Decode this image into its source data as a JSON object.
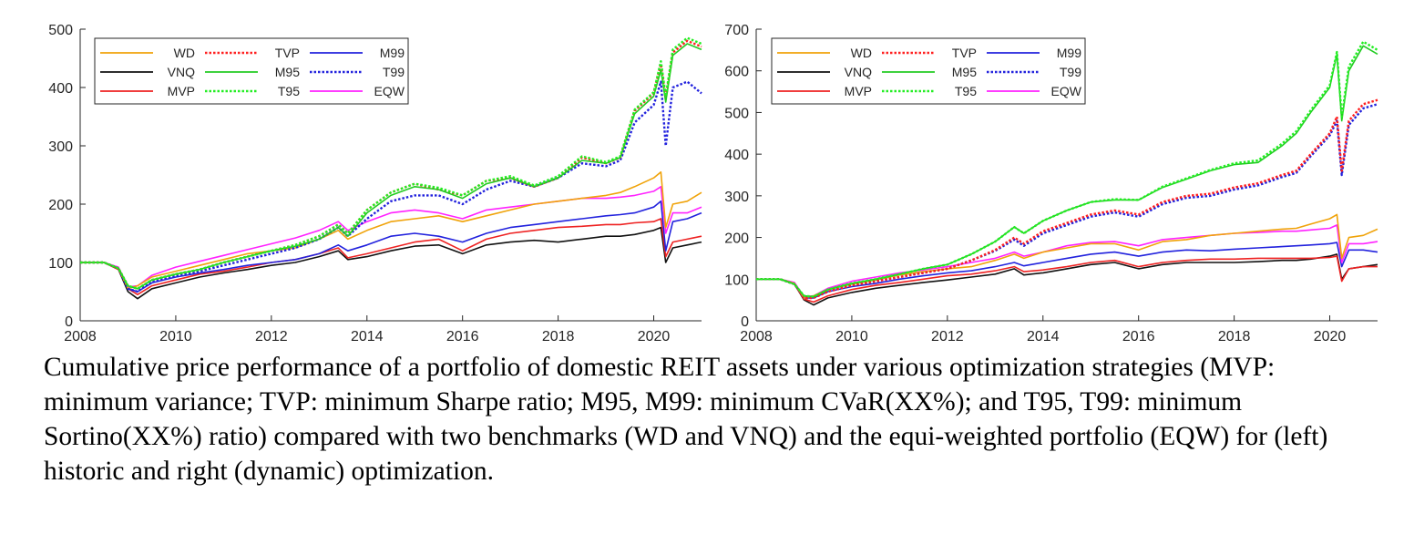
{
  "caption": "Cumulative price performance of a portfolio of domestic REIT assets under various optimization strategies (MVP: minimum variance; TVP: minimum Sharpe ratio; M95, M99: minimum CVaR(XX%); and T95, T99: minimum Sortino(XX%) ratio) compared with two benchmarks (WD and VNQ) and the equi-weighted portfolio (EQW) for (left) historic and right (dynamic) optimization.",
  "legend_style": [
    {
      "name": "WD",
      "color": "#f0a30a",
      "dash": "solid"
    },
    {
      "name": "TVP",
      "color": "#ff1f1f",
      "dash": "dotted"
    },
    {
      "name": "M99",
      "color": "#2222dd",
      "dash": "solid"
    },
    {
      "name": "VNQ",
      "color": "#111111",
      "dash": "solid"
    },
    {
      "name": "M95",
      "color": "#22cc22",
      "dash": "solid"
    },
    {
      "name": "T99",
      "color": "#2222dd",
      "dash": "dotted"
    },
    {
      "name": "MVP",
      "color": "#ee2222",
      "dash": "solid"
    },
    {
      "name": "T95",
      "color": "#22ee22",
      "dash": "dotted"
    },
    {
      "name": "EQW",
      "color": "#ff22ff",
      "dash": "solid"
    }
  ],
  "chart_data": [
    {
      "type": "line",
      "title": "",
      "xlabel": "",
      "ylabel": "",
      "xlim": [
        2008,
        2021
      ],
      "ylim": [
        0,
        500
      ],
      "xticks": [
        2008,
        2010,
        2012,
        2014,
        2016,
        2018,
        2020
      ],
      "yticks": [
        0,
        100,
        200,
        300,
        400,
        500
      ],
      "grid": false,
      "legend_position": "top-left",
      "x": [
        2008.0,
        2008.5,
        2008.8,
        2009.0,
        2009.2,
        2009.5,
        2010.0,
        2010.5,
        2011.0,
        2011.5,
        2012.0,
        2012.5,
        2013.0,
        2013.4,
        2013.6,
        2014.0,
        2014.5,
        2015.0,
        2015.5,
        2016.0,
        2016.5,
        2017.0,
        2017.5,
        2018.0,
        2018.5,
        2019.0,
        2019.3,
        2019.6,
        2020.0,
        2020.15,
        2020.25,
        2020.4,
        2020.7,
        2021.0
      ],
      "series": [
        {
          "name": "WD",
          "values": [
            100,
            100,
            90,
            55,
            60,
            75,
            85,
            95,
            105,
            115,
            120,
            125,
            140,
            155,
            140,
            155,
            170,
            175,
            180,
            170,
            180,
            190,
            200,
            205,
            210,
            215,
            220,
            230,
            245,
            255,
            160,
            200,
            205,
            220
          ]
        },
        {
          "name": "TVP",
          "values": [
            100,
            100,
            90,
            60,
            55,
            70,
            80,
            88,
            100,
            110,
            120,
            130,
            145,
            165,
            150,
            190,
            220,
            235,
            225,
            215,
            240,
            245,
            230,
            245,
            280,
            270,
            280,
            360,
            390,
            440,
            380,
            460,
            480,
            470
          ]
        },
        {
          "name": "M99",
          "values": [
            100,
            100,
            90,
            55,
            50,
            65,
            75,
            82,
            88,
            95,
            100,
            105,
            115,
            130,
            120,
            130,
            145,
            150,
            145,
            135,
            150,
            160,
            165,
            170,
            175,
            180,
            182,
            185,
            195,
            205,
            120,
            170,
            175,
            185
          ]
        },
        {
          "name": "VNQ",
          "values": [
            100,
            100,
            88,
            50,
            38,
            55,
            65,
            75,
            82,
            88,
            95,
            100,
            110,
            120,
            105,
            110,
            120,
            128,
            130,
            115,
            130,
            135,
            138,
            135,
            140,
            145,
            145,
            148,
            155,
            160,
            100,
            125,
            130,
            135
          ]
        },
        {
          "name": "M95",
          "values": [
            100,
            100,
            90,
            60,
            55,
            70,
            80,
            88,
            100,
            110,
            120,
            128,
            140,
            160,
            145,
            185,
            215,
            230,
            225,
            210,
            235,
            245,
            230,
            245,
            275,
            270,
            280,
            355,
            385,
            430,
            375,
            455,
            475,
            465
          ]
        },
        {
          "name": "T99",
          "values": [
            100,
            100,
            90,
            55,
            50,
            68,
            78,
            85,
            95,
            105,
            115,
            125,
            140,
            160,
            145,
            175,
            205,
            215,
            215,
            200,
            225,
            240,
            230,
            245,
            270,
            265,
            275,
            340,
            370,
            410,
            300,
            400,
            410,
            390
          ]
        },
        {
          "name": "MVP",
          "values": [
            100,
            100,
            88,
            55,
            45,
            60,
            70,
            80,
            85,
            92,
            100,
            105,
            115,
            125,
            108,
            115,
            125,
            135,
            140,
            120,
            140,
            150,
            155,
            160,
            162,
            165,
            165,
            168,
            170,
            175,
            110,
            135,
            140,
            145
          ]
        },
        {
          "name": "T95",
          "values": [
            100,
            100,
            90,
            60,
            55,
            70,
            80,
            88,
            100,
            110,
            120,
            130,
            145,
            165,
            150,
            190,
            220,
            235,
            228,
            215,
            240,
            248,
            232,
            248,
            282,
            272,
            282,
            362,
            392,
            445,
            385,
            465,
            485,
            475
          ]
        },
        {
          "name": "EQW",
          "values": [
            100,
            100,
            92,
            58,
            60,
            78,
            92,
            102,
            112,
            122,
            132,
            142,
            155,
            170,
            155,
            170,
            185,
            190,
            185,
            175,
            190,
            195,
            200,
            205,
            210,
            210,
            212,
            215,
            222,
            230,
            150,
            185,
            185,
            195
          ]
        }
      ]
    },
    {
      "type": "line",
      "title": "",
      "xlabel": "",
      "ylabel": "",
      "xlim": [
        2008,
        2021
      ],
      "ylim": [
        0,
        700
      ],
      "xticks": [
        2008,
        2010,
        2012,
        2014,
        2016,
        2018,
        2020
      ],
      "yticks": [
        0,
        100,
        200,
        300,
        400,
        500,
        600,
        700
      ],
      "grid": false,
      "legend_position": "top-left",
      "x": [
        2008.0,
        2008.5,
        2008.8,
        2009.0,
        2009.2,
        2009.5,
        2010.0,
        2010.5,
        2011.0,
        2011.5,
        2012.0,
        2012.5,
        2013.0,
        2013.4,
        2013.6,
        2014.0,
        2014.5,
        2015.0,
        2015.5,
        2016.0,
        2016.5,
        2017.0,
        2017.5,
        2018.0,
        2018.5,
        2019.0,
        2019.3,
        2019.6,
        2020.0,
        2020.15,
        2020.25,
        2020.4,
        2020.7,
        2021.0
      ],
      "series": [
        {
          "name": "WD",
          "values": [
            100,
            100,
            90,
            55,
            60,
            75,
            88,
            98,
            110,
            118,
            125,
            130,
            145,
            160,
            150,
            165,
            175,
            185,
            185,
            170,
            190,
            195,
            205,
            210,
            215,
            220,
            222,
            232,
            245,
            255,
            150,
            200,
            205,
            220
          ]
        },
        {
          "name": "TVP",
          "values": [
            100,
            100,
            88,
            55,
            55,
            70,
            85,
            95,
            105,
            115,
            125,
            145,
            170,
            200,
            185,
            215,
            235,
            255,
            265,
            255,
            285,
            300,
            305,
            320,
            330,
            350,
            360,
            400,
            450,
            490,
            360,
            480,
            520,
            530
          ]
        },
        {
          "name": "M99",
          "values": [
            100,
            100,
            88,
            55,
            55,
            70,
            82,
            90,
            100,
            108,
            115,
            120,
            130,
            140,
            132,
            140,
            150,
            160,
            165,
            155,
            165,
            170,
            168,
            172,
            175,
            178,
            180,
            182,
            185,
            188,
            130,
            170,
            170,
            165
          ]
        },
        {
          "name": "VNQ",
          "values": [
            100,
            100,
            88,
            50,
            38,
            55,
            68,
            78,
            85,
            92,
            98,
            105,
            112,
            125,
            110,
            115,
            125,
            135,
            140,
            125,
            135,
            140,
            140,
            140,
            142,
            145,
            145,
            148,
            155,
            160,
            100,
            125,
            130,
            135
          ]
        },
        {
          "name": "M95",
          "values": [
            100,
            100,
            88,
            60,
            58,
            75,
            90,
            100,
            112,
            125,
            135,
            160,
            190,
            225,
            210,
            240,
            265,
            285,
            290,
            290,
            320,
            340,
            360,
            375,
            380,
            420,
            450,
            500,
            560,
            640,
            480,
            600,
            660,
            640
          ]
        },
        {
          "name": "T99",
          "values": [
            100,
            100,
            88,
            55,
            55,
            70,
            85,
            95,
            105,
            115,
            125,
            145,
            168,
            195,
            180,
            210,
            230,
            250,
            260,
            250,
            280,
            295,
            300,
            315,
            325,
            345,
            355,
            395,
            445,
            480,
            350,
            470,
            510,
            520
          ]
        },
        {
          "name": "MVP",
          "values": [
            100,
            100,
            88,
            52,
            45,
            60,
            75,
            85,
            92,
            100,
            108,
            112,
            120,
            130,
            118,
            122,
            130,
            140,
            145,
            130,
            140,
            145,
            148,
            148,
            150,
            150,
            150,
            150,
            152,
            155,
            95,
            125,
            130,
            130
          ]
        },
        {
          "name": "T95",
          "values": [
            100,
            100,
            88,
            60,
            58,
            75,
            90,
            100,
            112,
            125,
            135,
            160,
            190,
            225,
            210,
            240,
            265,
            285,
            292,
            290,
            322,
            342,
            362,
            378,
            385,
            425,
            455,
            505,
            565,
            645,
            490,
            610,
            670,
            650
          ]
        },
        {
          "name": "EQW",
          "values": [
            100,
            100,
            92,
            58,
            60,
            78,
            95,
            105,
            115,
            122,
            130,
            140,
            150,
            165,
            155,
            165,
            180,
            188,
            190,
            180,
            195,
            200,
            205,
            210,
            212,
            215,
            215,
            218,
            222,
            230,
            140,
            185,
            185,
            190
          ]
        }
      ]
    }
  ]
}
